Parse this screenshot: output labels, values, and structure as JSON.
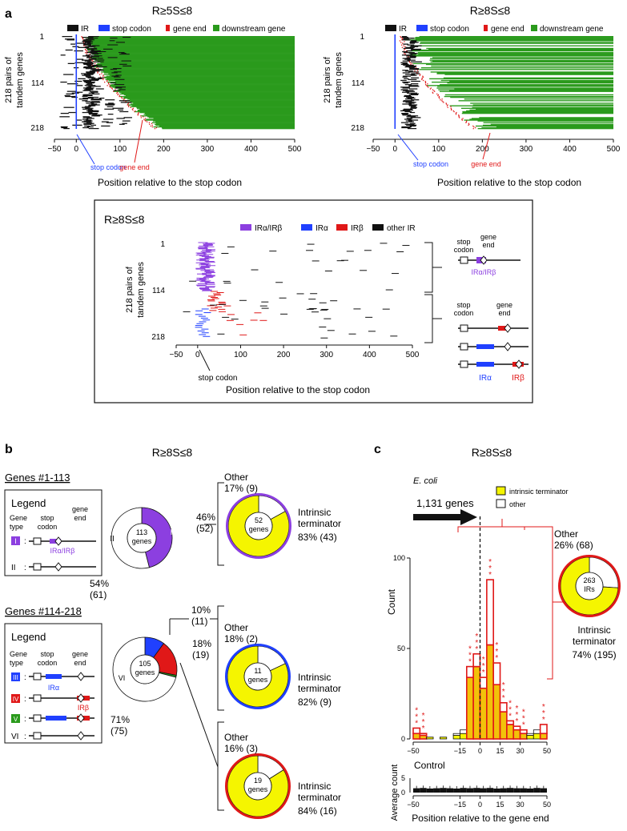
{
  "colors": {
    "green": "#2a9a1c",
    "blue": "#2040ff",
    "red": "#e01818",
    "purple": "#8c3fe0",
    "yellow": "#f5f500",
    "terminator_bar": "#f2c20a",
    "dark": "#111111"
  },
  "panel_a": {
    "label": "a",
    "left_title": "R≥5S≤8",
    "right_title": "R≥8S≤8",
    "legend": {
      "ir": "IR",
      "stop_codon": "stop codon",
      "gene_end": "gene end",
      "downstream_gene": "downstream gene"
    },
    "ylabel_line1": "218 pairs of",
    "ylabel_line2": "tandem genes",
    "yticks": [
      "1",
      "114",
      "218"
    ],
    "xticks": [
      "−50",
      "0",
      "100",
      "200",
      "300",
      "400",
      "500"
    ],
    "xlabel": "Position relative to the stop codon",
    "annot_stop": "stop codon",
    "annot_gene_end": "gene end",
    "inset": {
      "title": "R≥8S≤8",
      "legend": {
        "ir_ab": "IRα/IRβ",
        "ir_a": "IRα",
        "ir_b": "IRβ",
        "other": "other IR"
      },
      "annot_stop": "stop codon",
      "schem": {
        "stop": "stop",
        "codon": "codon",
        "gene": "gene",
        "end": "end",
        "ir_ab": "IRα/IRβ",
        "ir_a": "IRα",
        "ir_b": "IRβ"
      }
    }
  },
  "panel_b": {
    "label": "b",
    "title": "R≥8S≤8",
    "group1": {
      "heading": "Genes #1-113",
      "legend_title": "Legend",
      "gene": "Gene",
      "type": "type",
      "stop": "stop",
      "codon": "codon",
      "gene_hdr": "gene",
      "end": "end",
      "type_i": "I",
      "type_ii": "II",
      "ir_label": "IRα/IRβ",
      "donut_center_n": "113",
      "donut_center_unit": "genes",
      "pct_i": "46%",
      "cnt_i": "(52)",
      "pct_ii": "54%",
      "cnt_ii": "(61)",
      "sub": {
        "center_n": "52",
        "center_unit": "genes",
        "other_pct": "Other",
        "other_val": "17% (9)",
        "term1": "Intrinsic",
        "term2": "terminator",
        "term_val": "83% (43)"
      }
    },
    "group2": {
      "heading": "Genes #114-218",
      "legend_title": "Legend",
      "gene": "Gene",
      "type": "type",
      "stop": "stop",
      "codon": "codon",
      "gene_hdr": "gene",
      "end": "end",
      "type_iii": "III",
      "type_iv": "IV",
      "type_v": "V",
      "type_vi": "VI",
      "ir_a": "IRα",
      "ir_b": "IRβ",
      "donut_center_n": "105",
      "donut_center_unit": "genes",
      "pct_iii": "10%",
      "cnt_iii": "(11)",
      "pct_iv": "18%",
      "cnt_iv": "(19)",
      "pct_vi": "71%",
      "cnt_vi": "(75)",
      "sub_a": {
        "center_n": "11",
        "center_unit": "genes",
        "other": "Other",
        "other_val": "18% (2)",
        "term1": "Intrinsic",
        "term2": "terminator",
        "term_val": "82% (9)"
      },
      "sub_b": {
        "center_n": "19",
        "center_unit": "genes",
        "other": "Other",
        "other_val": "16% (3)",
        "term1": "Intrinsic",
        "term2": "terminator",
        "term_val": "84% (16)"
      }
    }
  },
  "panel_c": {
    "label": "c",
    "title": "R≥8S≤8",
    "organism": "E. coli",
    "legend": {
      "term": "intrinsic terminator",
      "other": "other"
    },
    "genes_arrow": "1,131 genes",
    "ylabel": "Count",
    "ctrl_label": "Control",
    "ctrl_ylabel": "Average count",
    "xlabel": "Position relative to the gene end",
    "donut": {
      "center_n": "263",
      "center_unit": "IRs",
      "other": "Other",
      "other_val": "26% (68)",
      "term1": "Intrinsic",
      "term2": "terminator",
      "term_val": "74% (195)"
    }
  },
  "chart_data": {
    "type": "bar",
    "title": "R≥8S≤8",
    "xlabel": "Position relative to the gene end",
    "ylabel": "Count",
    "xlim": [
      -50,
      50
    ],
    "ylim": [
      0,
      100
    ],
    "xticks": [
      -50,
      -15,
      0,
      15,
      30,
      50
    ],
    "yticks": [
      0,
      50,
      100
    ],
    "bin_starts": [
      -50,
      -45,
      -40,
      -35,
      -30,
      -25,
      -20,
      -15,
      -10,
      -5,
      0,
      5,
      10,
      15,
      20,
      25,
      30,
      35,
      40,
      45
    ],
    "series": [
      {
        "name": "intrinsic terminator",
        "values": [
          3,
          2,
          1,
          0,
          1,
          0,
          2,
          3,
          34,
          40,
          28,
          52,
          30,
          15,
          8,
          5,
          3,
          2,
          3,
          3
        ]
      },
      {
        "name": "other",
        "values": [
          3,
          1,
          0,
          0,
          0,
          0,
          1,
          2,
          6,
          7,
          6,
          36,
          12,
          5,
          2,
          2,
          2,
          1,
          2,
          5
        ]
      }
    ],
    "significant_bins": [
      -50,
      -45,
      -10,
      -5,
      0,
      5,
      10,
      15,
      20,
      25,
      30,
      45
    ],
    "control": {
      "ylabel": "Average count",
      "yticks": [
        0,
        5
      ],
      "values": [
        1.5,
        1.6,
        1.4,
        1.5,
        1.6,
        1.5,
        1.4,
        1.6,
        1.5,
        1.6,
        1.5,
        1.6,
        1.4,
        1.5,
        1.6,
        1.5,
        1.5,
        1.4,
        1.6,
        1.5
      ]
    }
  }
}
